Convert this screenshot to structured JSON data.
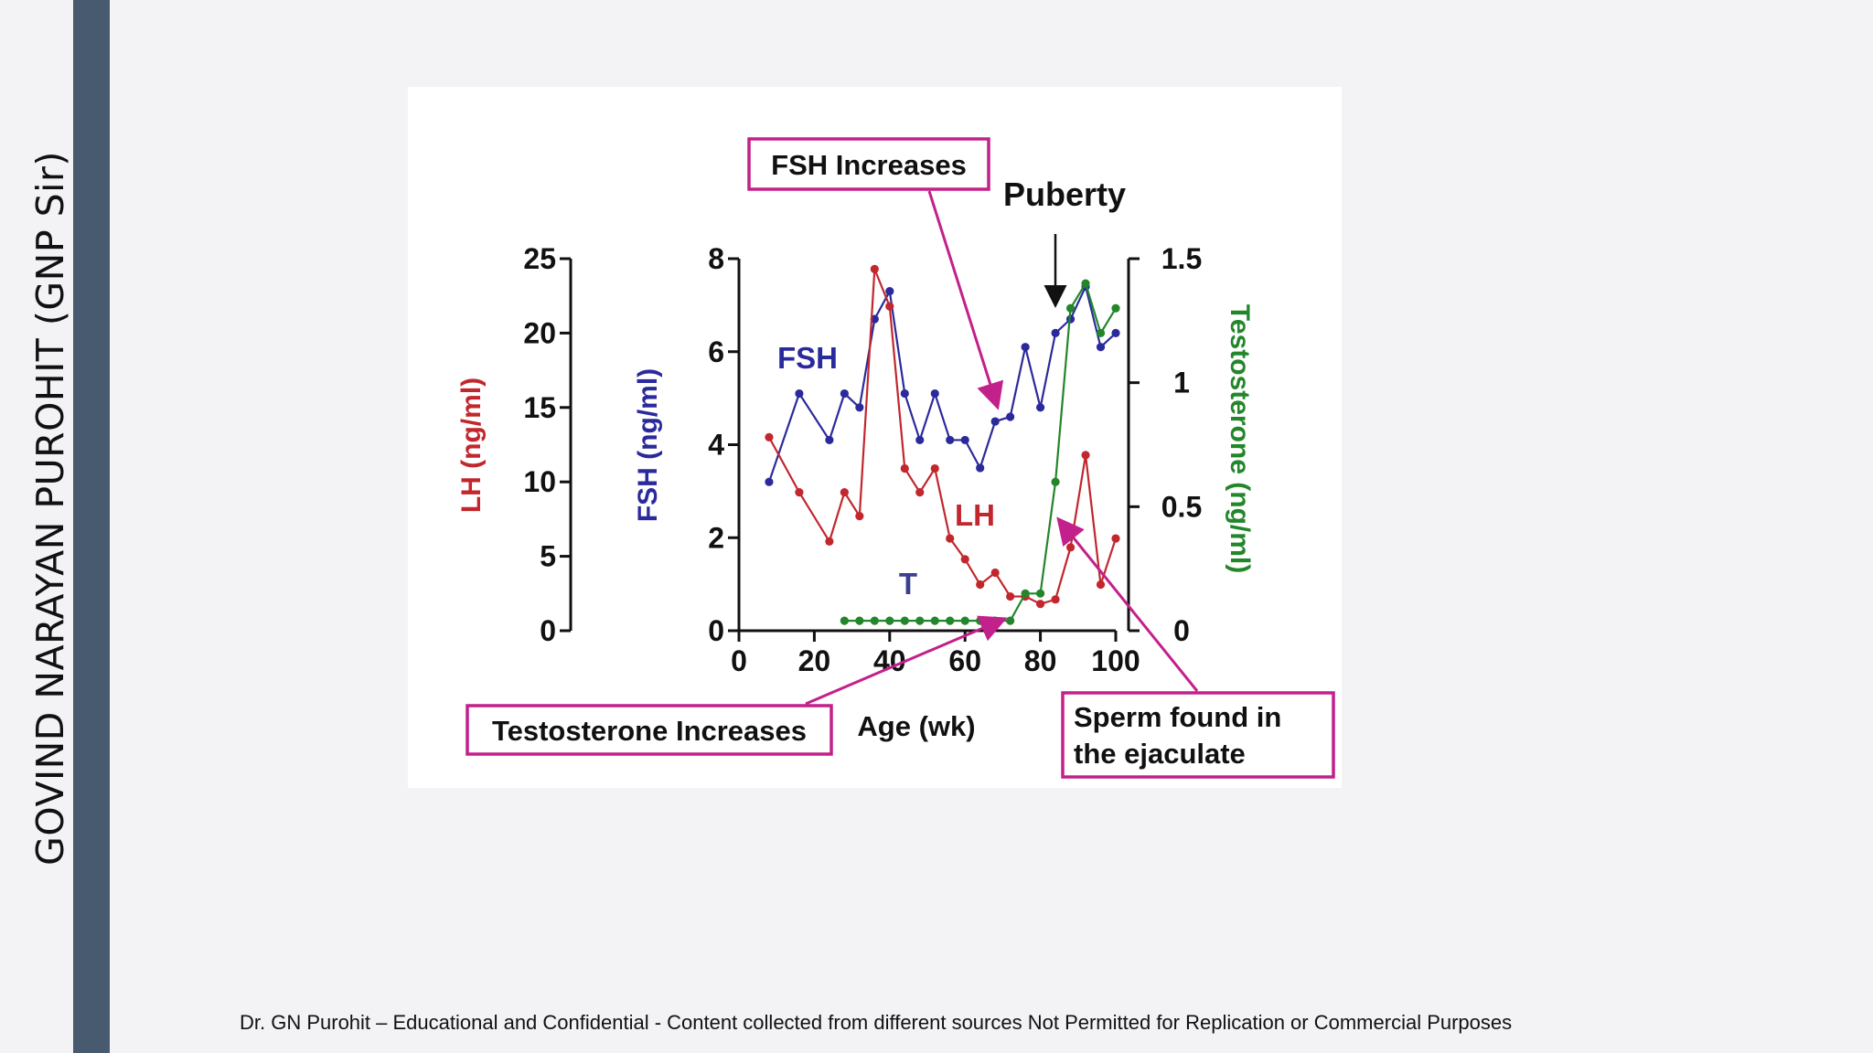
{
  "side_label": "GOVIND NARAYAN PUROHIT (GNP Sir)",
  "footer": "Dr. GN Purohit – Educational and Confidential - Content  collected from different sources Not Permitted for Replication or Commercial Purposes",
  "colors": {
    "lh": "#c1272d",
    "fsh": "#2b2a9c",
    "t": "#23862b",
    "annotation": "#c2208a",
    "sidebar": "#475a70"
  },
  "chart_data": {
    "type": "line",
    "xlabel": "Age (wk)",
    "x_ticks": [
      "0",
      "20",
      "40",
      "60",
      "80",
      "100"
    ],
    "xlim": [
      0,
      100
    ],
    "axes": {
      "lh": {
        "label": "LH (ng/ml)",
        "ticks": [
          "0",
          "5",
          "10",
          "15",
          "20",
          "25"
        ],
        "range": [
          0,
          25
        ]
      },
      "fsh": {
        "label": "FSH (ng/ml)",
        "ticks": [
          "0",
          "2",
          "4",
          "6",
          "8"
        ],
        "range": [
          0,
          8
        ]
      },
      "t": {
        "label": "Testosterone (ng/ml)",
        "ticks": [
          "0",
          "0.5",
          "1",
          "1.5"
        ],
        "range": [
          0,
          1.5
        ]
      }
    },
    "series": [
      {
        "name": "FSH",
        "axis": "fsh",
        "x": [
          8,
          16,
          24,
          28,
          32,
          36,
          40,
          44,
          48,
          52,
          56,
          60,
          64,
          68,
          72,
          76,
          80,
          84,
          88,
          92,
          96,
          100
        ],
        "y": [
          3.2,
          5.1,
          4.1,
          5.1,
          4.8,
          6.7,
          7.3,
          5.1,
          4.1,
          5.1,
          4.1,
          4.1,
          3.5,
          4.5,
          4.6,
          6.1,
          4.8,
          6.4,
          6.7,
          7.4,
          6.1,
          6.4
        ]
      },
      {
        "name": "LH",
        "axis": "lh",
        "x": [
          8,
          16,
          24,
          28,
          32,
          36,
          40,
          44,
          48,
          52,
          56,
          60,
          64,
          68,
          72,
          76,
          80,
          84,
          88,
          92,
          96,
          100
        ],
        "y": [
          13.0,
          9.3,
          6.0,
          9.3,
          7.7,
          24.3,
          21.8,
          10.9,
          9.3,
          10.9,
          6.2,
          4.8,
          3.1,
          3.9,
          2.3,
          2.3,
          1.8,
          2.1,
          5.6,
          11.8,
          3.1,
          6.2
        ]
      },
      {
        "name": "T",
        "axis": "t",
        "x": [
          28,
          32,
          36,
          40,
          44,
          48,
          52,
          56,
          60,
          64,
          68,
          72,
          76,
          80,
          84,
          88,
          92,
          96,
          100
        ],
        "y": [
          0.04,
          0.04,
          0.04,
          0.04,
          0.04,
          0.04,
          0.04,
          0.04,
          0.04,
          0.04,
          0.04,
          0.04,
          0.15,
          0.15,
          0.6,
          1.3,
          1.4,
          1.2,
          1.3
        ]
      }
    ],
    "annotations": {
      "fsh_increases": "FSH Increases",
      "puberty": "Puberty",
      "testosterone_increases": "Testosterone Increases",
      "sperm_line1": "Sperm found in",
      "sperm_line2": "the ejaculate"
    }
  }
}
